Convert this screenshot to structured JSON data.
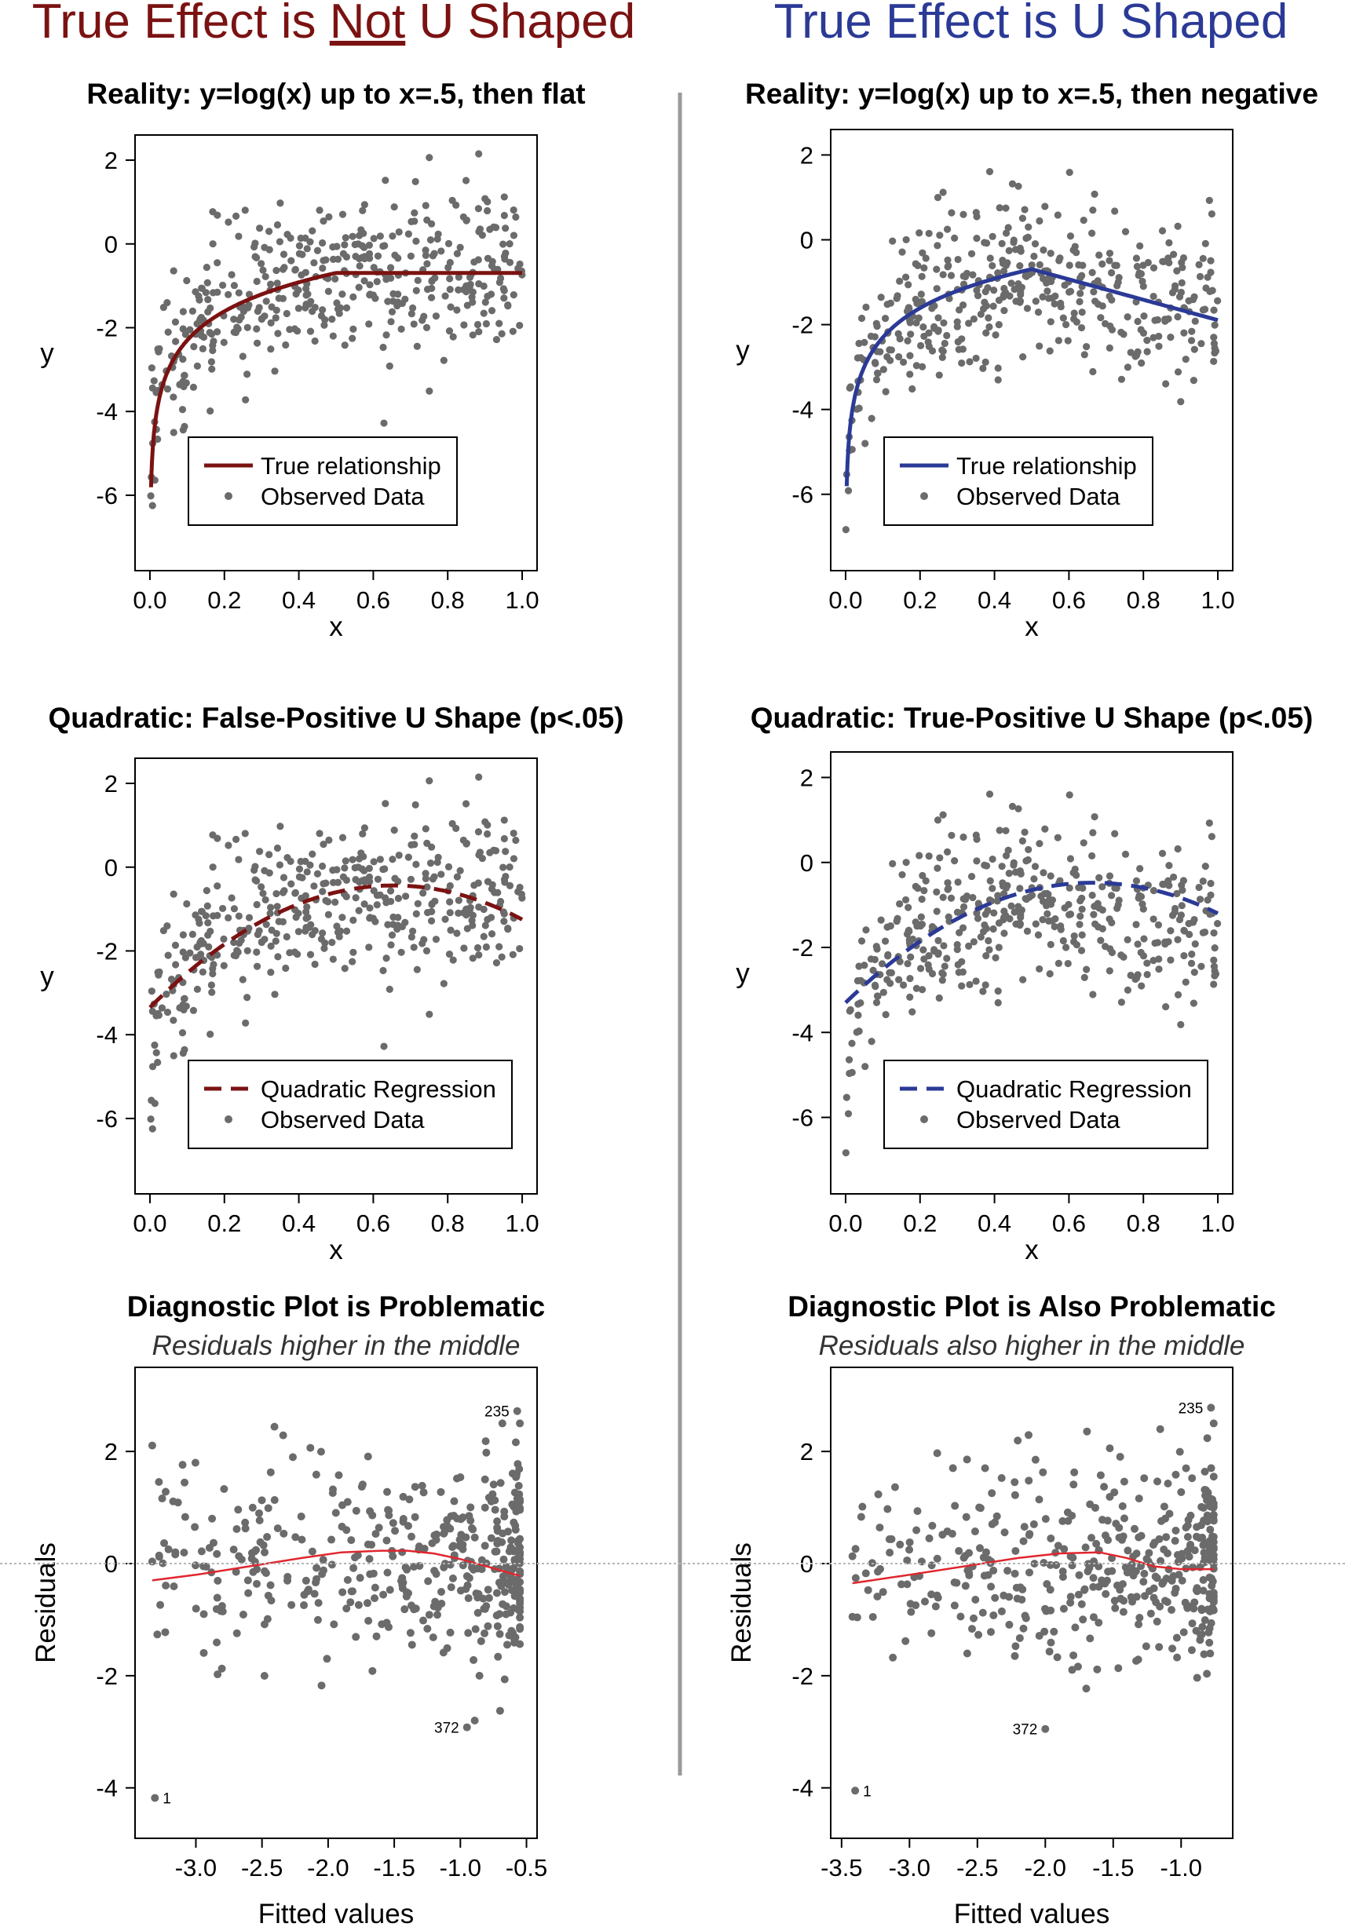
{
  "colors": {
    "dark_red": "#7b1212",
    "blue": "#2b3a96",
    "points": "#6b6b6b",
    "loess": "#e0262e",
    "divider": "#9a9a9a"
  },
  "columns": [
    {
      "title_parts": [
        "True Effect is ",
        "Not",
        " U Shaped"
      ],
      "underline_index": 1,
      "color": "#7b1212"
    },
    {
      "title_parts": [
        "True Effect is U Shaped"
      ],
      "underline_index": -1,
      "color": "#2b3a96"
    }
  ],
  "chart_data": [
    {
      "id": "reality-flat",
      "type": "scatter",
      "title": "Reality: y=log(x) up to x=.5, then flat",
      "xlabel": "x",
      "ylabel": "y",
      "xlim": [
        -0.04,
        1.04
      ],
      "ylim": [
        -7.8,
        2.6
      ],
      "xticks": [
        0,
        0.2,
        0.4,
        0.6,
        0.8,
        1
      ],
      "xtick_labels": [
        "0.0",
        "0.2",
        "0.4",
        "0.6",
        "0.8",
        "1.0"
      ],
      "yticks": [
        -6,
        -4,
        -2,
        0,
        2
      ],
      "ytick_labels": [
        "-6",
        "-4",
        "-2",
        "0",
        "2"
      ],
      "scenario": "flat",
      "seed": 11,
      "curve": {
        "kind": "true",
        "style": "solid",
        "color": "#7b1212"
      },
      "legend": {
        "position": "bottom-left",
        "entries": [
          "True relationship",
          "Observed Data"
        ]
      }
    },
    {
      "id": "reality-negative",
      "type": "scatter",
      "title": "Reality: y=log(x) up to x=.5, then negative",
      "xlabel": "x",
      "ylabel": "y",
      "xlim": [
        -0.04,
        1.04
      ],
      "ylim": [
        -7.8,
        2.6
      ],
      "xticks": [
        0,
        0.2,
        0.4,
        0.6,
        0.8,
        1
      ],
      "xtick_labels": [
        "0.0",
        "0.2",
        "0.4",
        "0.6",
        "0.8",
        "1.0"
      ],
      "yticks": [
        -6,
        -4,
        -2,
        0,
        2
      ],
      "ytick_labels": [
        "-6",
        "-4",
        "-2",
        "0",
        "2"
      ],
      "scenario": "negative",
      "seed": 29,
      "curve": {
        "kind": "true",
        "style": "solid",
        "color": "#2b3a96"
      },
      "legend": {
        "position": "bottom-left",
        "entries": [
          "True relationship",
          "Observed Data"
        ]
      }
    },
    {
      "id": "quadratic-false-positive",
      "type": "scatter",
      "title": "Quadratic: False-Positive U Shape (p<.05)",
      "xlabel": "x",
      "ylabel": "y",
      "xlim": [
        -0.04,
        1.04
      ],
      "ylim": [
        -7.8,
        2.6
      ],
      "xticks": [
        0,
        0.2,
        0.4,
        0.6,
        0.8,
        1
      ],
      "xtick_labels": [
        "0.0",
        "0.2",
        "0.4",
        "0.6",
        "0.8",
        "1.0"
      ],
      "yticks": [
        -6,
        -4,
        -2,
        0,
        2
      ],
      "ytick_labels": [
        "-6",
        "-4",
        "-2",
        "0",
        "2"
      ],
      "scenario": "flat",
      "seed": 11,
      "curve": {
        "kind": "quadratic",
        "style": "dashed",
        "color": "#7b1212",
        "coefficients": [
          -3.35,
          8.9,
          -6.8
        ]
      },
      "legend": {
        "position": "bottom-left",
        "entries": [
          "Quadratic Regression",
          "Observed Data"
        ]
      }
    },
    {
      "id": "quadratic-true-positive",
      "type": "scatter",
      "title": "Quadratic: True-Positive U Shape (p<.05)",
      "xlabel": "x",
      "ylabel": "y",
      "xlim": [
        -0.04,
        1.04
      ],
      "ylim": [
        -7.8,
        2.6
      ],
      "xticks": [
        0,
        0.2,
        0.4,
        0.6,
        0.8,
        1
      ],
      "xtick_labels": [
        "0.0",
        "0.2",
        "0.4",
        "0.6",
        "0.8",
        "1.0"
      ],
      "yticks": [
        -6,
        -4,
        -2,
        0,
        2
      ],
      "ytick_labels": [
        "-6",
        "-4",
        "-2",
        "0",
        "2"
      ],
      "scenario": "negative",
      "seed": 29,
      "curve": {
        "kind": "quadratic",
        "style": "dashed",
        "color": "#2b3a96",
        "coefficients": [
          -3.3,
          8.5,
          -6.4
        ]
      },
      "legend": {
        "position": "bottom-left",
        "entries": [
          "Quadratic Regression",
          "Observed Data"
        ]
      }
    },
    {
      "id": "diagnostic-flat",
      "type": "scatter",
      "title": "Diagnostic Plot is Problematic",
      "subtitle": "Residuals higher in the middle",
      "xlabel": "Fitted values",
      "ylabel": "Residuals",
      "xlim": [
        -3.46,
        -0.42
      ],
      "ylim": [
        -4.9,
        3.5
      ],
      "xticks": [
        -3,
        -2.5,
        -2,
        -1.5,
        -1,
        -0.5
      ],
      "xtick_labels": [
        "-3.0",
        "-2.5",
        "-2.0",
        "-1.5",
        "-1.0",
        "-0.5"
      ],
      "yticks": [
        -4,
        -2,
        0,
        2
      ],
      "ytick_labels": [
        "-4",
        "-2",
        "0",
        "2"
      ],
      "scenario": "flat",
      "seed": 11,
      "fitted_range": [
        -3.33,
        -0.55
      ],
      "loess": {
        "color": "#e0262e",
        "x": [
          -3.33,
          -3.0,
          -2.6,
          -2.2,
          -1.9,
          -1.6,
          -1.4,
          -1.2,
          -1.0,
          -0.8,
          -0.55
        ],
        "y": [
          -0.3,
          -0.2,
          -0.05,
          0.1,
          0.2,
          0.23,
          0.23,
          0.18,
          0.08,
          -0.05,
          -0.22
        ]
      },
      "labeled_points": [
        {
          "label": "235",
          "x": -0.57,
          "y": 2.72
        },
        {
          "label": "372",
          "x": -0.95,
          "y": -2.92
        },
        {
          "label": "1",
          "x": -3.31,
          "y": -4.18
        }
      ]
    },
    {
      "id": "diagnostic-negative",
      "type": "scatter",
      "title": "Diagnostic Plot is Also Problematic",
      "subtitle": "Residuals also higher in the middle",
      "xlabel": "Fitted values",
      "ylabel": "Residuals",
      "xlim": [
        -3.58,
        -0.62
      ],
      "ylim": [
        -4.9,
        3.5
      ],
      "xticks": [
        -3.5,
        -3,
        -2.5,
        -2,
        -1.5,
        -1
      ],
      "xtick_labels": [
        "-3.5",
        "-3.0",
        "-2.5",
        "-2.0",
        "-1.5",
        "-1.0"
      ],
      "yticks": [
        -4,
        -2,
        0,
        2
      ],
      "ytick_labels": [
        "-4",
        "-2",
        "0",
        "2"
      ],
      "scenario": "negative",
      "seed": 29,
      "fitted_range": [
        -3.42,
        -0.76
      ],
      "loess": {
        "color": "#e0262e",
        "x": [
          -3.42,
          -3.0,
          -2.6,
          -2.2,
          -1.9,
          -1.6,
          -1.4,
          -1.2,
          -1.0,
          -0.76
        ],
        "y": [
          -0.35,
          -0.2,
          -0.05,
          0.1,
          0.18,
          0.2,
          0.1,
          -0.05,
          -0.1,
          -0.1
        ]
      },
      "labeled_points": [
        {
          "label": "235",
          "x": -0.78,
          "y": 2.78
        },
        {
          "label": "372",
          "x": -2.0,
          "y": -2.95
        },
        {
          "label": "1",
          "x": -3.4,
          "y": -4.05
        }
      ]
    }
  ]
}
